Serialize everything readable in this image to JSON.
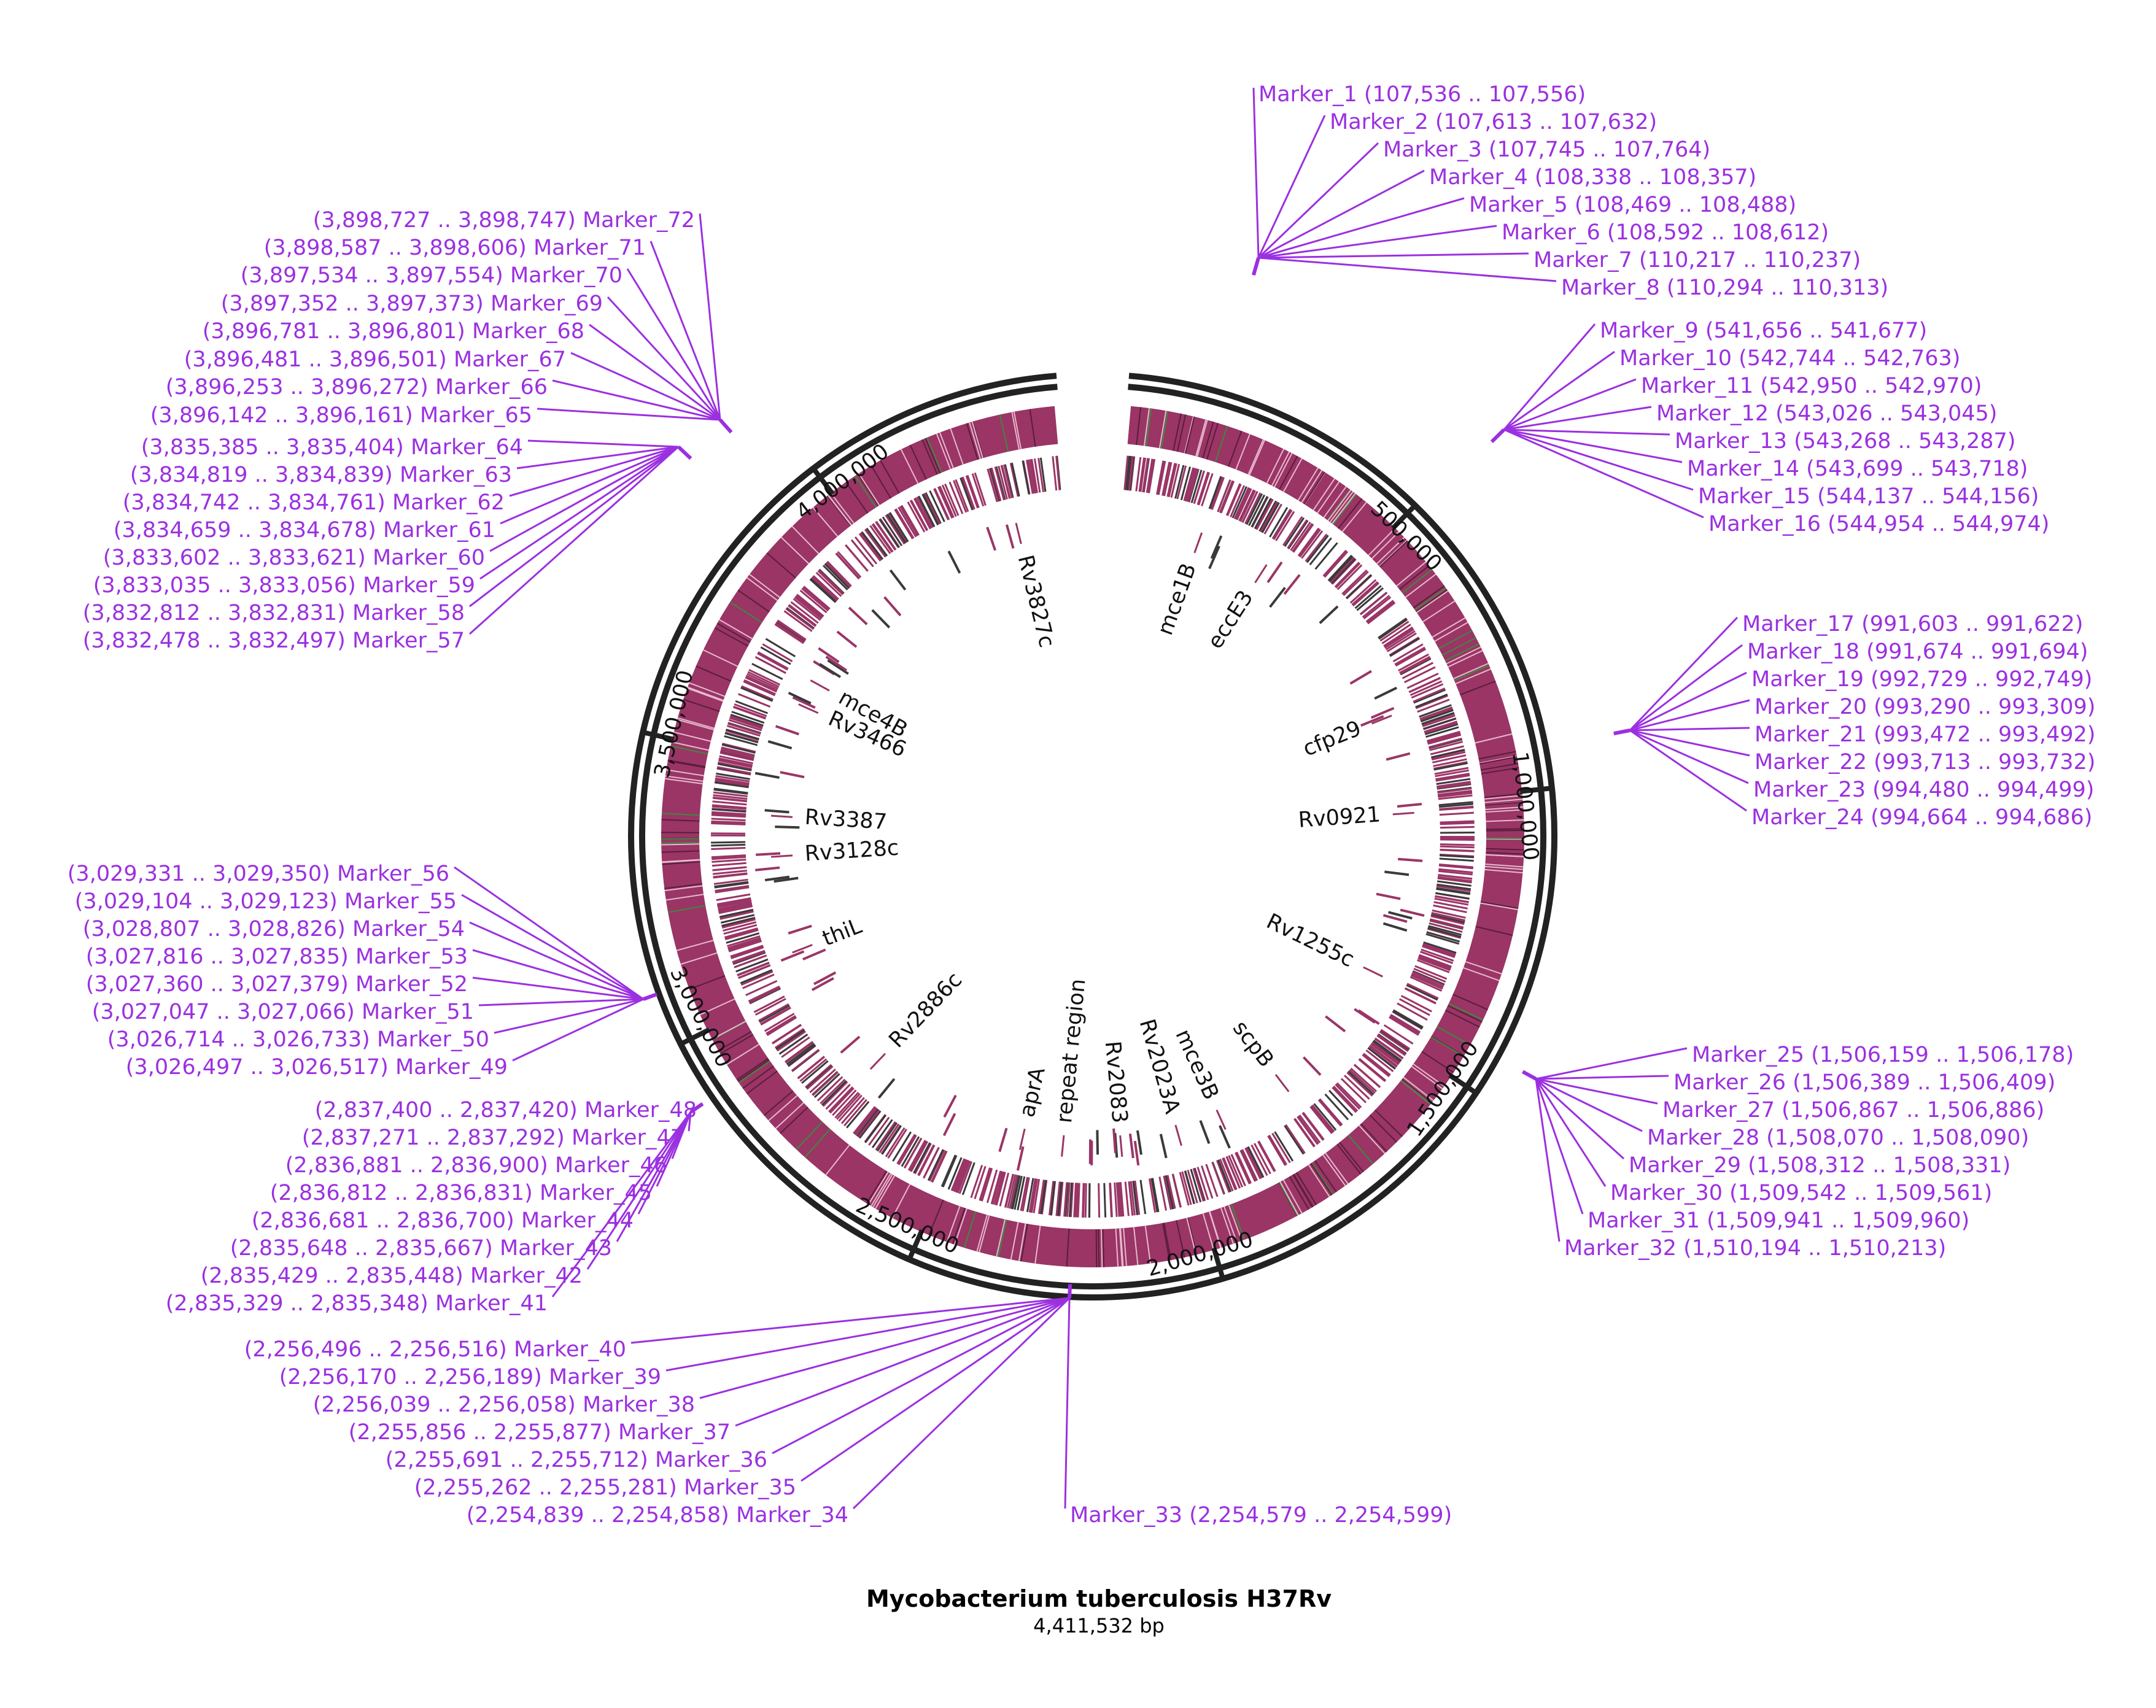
{
  "genome": {
    "name": "Mycobacterium tuberculosis H37Rv",
    "length_label": "4,411,532 bp",
    "length_bp": 4411532
  },
  "colors": {
    "marker": "#9b30e0",
    "feature": "#9a3566",
    "feature_alt": "#3a3a3a",
    "highlight": "#3d8a3d",
    "backbone": "#222222"
  },
  "ticks": [
    {
      "label": "500,000",
      "pos": 500000
    },
    {
      "label": "1,000,000",
      "pos": 1000000
    },
    {
      "label": "1,500,000",
      "pos": 1500000
    },
    {
      "label": "2,000,000",
      "pos": 2000000
    },
    {
      "label": "2,500,000",
      "pos": 2500000
    },
    {
      "label": "3,000,000",
      "pos": 3000000
    },
    {
      "label": "3,500,000",
      "pos": 3500000
    },
    {
      "label": "4,000,000",
      "pos": 4000000
    }
  ],
  "genes": [
    {
      "label": "Rv3827c",
      "pos": 4295000
    },
    {
      "label": "mce1B",
      "pos": 192000
    },
    {
      "label": "eccE3",
      "pos": 354000
    },
    {
      "label": "cfp29",
      "pos": 799000
    },
    {
      "label": "Rv0921",
      "pos": 1023000
    },
    {
      "label": "Rv1255c",
      "pos": 1400000
    },
    {
      "label": "scpB",
      "pos": 1735000
    },
    {
      "label": "mce3B",
      "pos": 1900000
    },
    {
      "label": "Rv2023A",
      "pos": 2005000
    },
    {
      "label": "Rv2083",
      "pos": 2140000
    },
    {
      "label": "repeat region",
      "pos": 2275000
    },
    {
      "label": "aprA",
      "pos": 2370000
    },
    {
      "label": "Rv2886c",
      "pos": 2754000
    },
    {
      "label": "thiL",
      "pos": 3070000
    },
    {
      "label": "Rv3128c",
      "pos": 3290000
    },
    {
      "label": "Rv3387",
      "pos": 3382000
    },
    {
      "label": "Rv3466",
      "pos": 3640000
    },
    {
      "label": "mce4B",
      "pos": 3700000
    }
  ],
  "markers": [
    {
      "name": "Marker_1",
      "range": "(107,536 .. 107,556)"
    },
    {
      "name": "Marker_2",
      "range": "(107,613 .. 107,632)"
    },
    {
      "name": "Marker_3",
      "range": "(107,745 .. 107,764)"
    },
    {
      "name": "Marker_4",
      "range": "(108,338 .. 108,357)"
    },
    {
      "name": "Marker_5",
      "range": "(108,469 .. 108,488)"
    },
    {
      "name": "Marker_6",
      "range": "(108,592 .. 108,612)"
    },
    {
      "name": "Marker_7",
      "range": "(110,217 .. 110,237)"
    },
    {
      "name": "Marker_8",
      "range": "(110,294 .. 110,313)"
    },
    {
      "name": "Marker_9",
      "range": "(541,656 .. 541,677)"
    },
    {
      "name": "Marker_10",
      "range": "(542,744 .. 542,763)"
    },
    {
      "name": "Marker_11",
      "range": "(542,950 .. 542,970)"
    },
    {
      "name": "Marker_12",
      "range": "(543,026 .. 543,045)"
    },
    {
      "name": "Marker_13",
      "range": "(543,268 .. 543,287)"
    },
    {
      "name": "Marker_14",
      "range": "(543,699 .. 543,718)"
    },
    {
      "name": "Marker_15",
      "range": "(544,137 .. 544,156)"
    },
    {
      "name": "Marker_16",
      "range": "(544,954 .. 544,974)"
    },
    {
      "name": "Marker_17",
      "range": "(991,603 .. 991,622)"
    },
    {
      "name": "Marker_18",
      "range": "(991,674 .. 991,694)"
    },
    {
      "name": "Marker_19",
      "range": "(992,729 .. 992,749)"
    },
    {
      "name": "Marker_20",
      "range": "(993,290 .. 993,309)"
    },
    {
      "name": "Marker_21",
      "range": "(993,472 .. 993,492)"
    },
    {
      "name": "Marker_22",
      "range": "(993,713 .. 993,732)"
    },
    {
      "name": "Marker_23",
      "range": "(994,480 .. 994,499)"
    },
    {
      "name": "Marker_24",
      "range": "(994,664 .. 994,686)"
    },
    {
      "name": "Marker_25",
      "range": "(1,506,159 .. 1,506,178)"
    },
    {
      "name": "Marker_26",
      "range": "(1,506,389 .. 1,506,409)"
    },
    {
      "name": "Marker_27",
      "range": "(1,506,867 .. 1,506,886)"
    },
    {
      "name": "Marker_28",
      "range": "(1,508,070 .. 1,508,090)"
    },
    {
      "name": "Marker_29",
      "range": "(1,508,312 .. 1,508,331)"
    },
    {
      "name": "Marker_30",
      "range": "(1,509,542 .. 1,509,561)"
    },
    {
      "name": "Marker_31",
      "range": "(1,509,941 .. 1,509,960)"
    },
    {
      "name": "Marker_32",
      "range": "(1,510,194 .. 1,510,213)"
    },
    {
      "name": "Marker_33",
      "range": "(2,254,579 .. 2,254,599)"
    },
    {
      "name": "Marker_34",
      "range": "(2,254,839 .. 2,254,858)"
    },
    {
      "name": "Marker_35",
      "range": "(2,255,262 .. 2,255,281)"
    },
    {
      "name": "Marker_36",
      "range": "(2,255,691 .. 2,255,712)"
    },
    {
      "name": "Marker_37",
      "range": "(2,255,856 .. 2,255,877)"
    },
    {
      "name": "Marker_38",
      "range": "(2,256,039 .. 2,256,058)"
    },
    {
      "name": "Marker_39",
      "range": "(2,256,170 .. 2,256,189)"
    },
    {
      "name": "Marker_40",
      "range": "(2,256,496 .. 2,256,516)"
    },
    {
      "name": "Marker_41",
      "range": "(2,835,329 .. 2,835,348)"
    },
    {
      "name": "Marker_42",
      "range": "(2,835,429 .. 2,835,448)"
    },
    {
      "name": "Marker_43",
      "range": "(2,835,648 .. 2,835,667)"
    },
    {
      "name": "Marker_44",
      "range": "(2,836,681 .. 2,836,700)"
    },
    {
      "name": "Marker_45",
      "range": "(2,836,812 .. 2,836,831)"
    },
    {
      "name": "Marker_46",
      "range": "(2,836,881 .. 2,836,900)"
    },
    {
      "name": "Marker_47",
      "range": "(2,837,271 .. 2,837,292)"
    },
    {
      "name": "Marker_48",
      "range": "(2,837,400 .. 2,837,420)"
    },
    {
      "name": "Marker_49",
      "range": "(3,026,497 .. 3,026,517)"
    },
    {
      "name": "Marker_50",
      "range": "(3,026,714 .. 3,026,733)"
    },
    {
      "name": "Marker_51",
      "range": "(3,027,047 .. 3,027,066)"
    },
    {
      "name": "Marker_52",
      "range": "(3,027,360 .. 3,027,379)"
    },
    {
      "name": "Marker_53",
      "range": "(3,027,816 .. 3,027,835)"
    },
    {
      "name": "Marker_54",
      "range": "(3,028,807 .. 3,028,826)"
    },
    {
      "name": "Marker_55",
      "range": "(3,029,104 .. 3,029,123)"
    },
    {
      "name": "Marker_56",
      "range": "(3,029,331 .. 3,029,350)"
    },
    {
      "name": "Marker_57",
      "range": "(3,832,478 .. 3,832,497)"
    },
    {
      "name": "Marker_58",
      "range": "(3,832,812 .. 3,832,831)"
    },
    {
      "name": "Marker_59",
      "range": "(3,833,035 .. 3,833,056)"
    },
    {
      "name": "Marker_60",
      "range": "(3,833,602 .. 3,833,621)"
    },
    {
      "name": "Marker_61",
      "range": "(3,834,659 .. 3,834,678)"
    },
    {
      "name": "Marker_62",
      "range": "(3,834,742 .. 3,834,761)"
    },
    {
      "name": "Marker_63",
      "range": "(3,834,819 .. 3,834,839)"
    },
    {
      "name": "Marker_64",
      "range": "(3,835,385 .. 3,835,404)"
    },
    {
      "name": "Marker_65",
      "range": "(3,896,142 .. 3,896,161)"
    },
    {
      "name": "Marker_66",
      "range": "(3,896,253 .. 3,896,272)"
    },
    {
      "name": "Marker_67",
      "range": "(3,896,481 .. 3,896,501)"
    },
    {
      "name": "Marker_68",
      "range": "(3,896,781 .. 3,896,801)"
    },
    {
      "name": "Marker_69",
      "range": "(3,897,352 .. 3,897,373)"
    },
    {
      "name": "Marker_70",
      "range": "(3,897,534 .. 3,897,554)"
    },
    {
      "name": "Marker_71",
      "range": "(3,898,587 .. 3,898,606)"
    },
    {
      "name": "Marker_72",
      "range": "(3,898,727 .. 3,898,747)"
    }
  ]
}
